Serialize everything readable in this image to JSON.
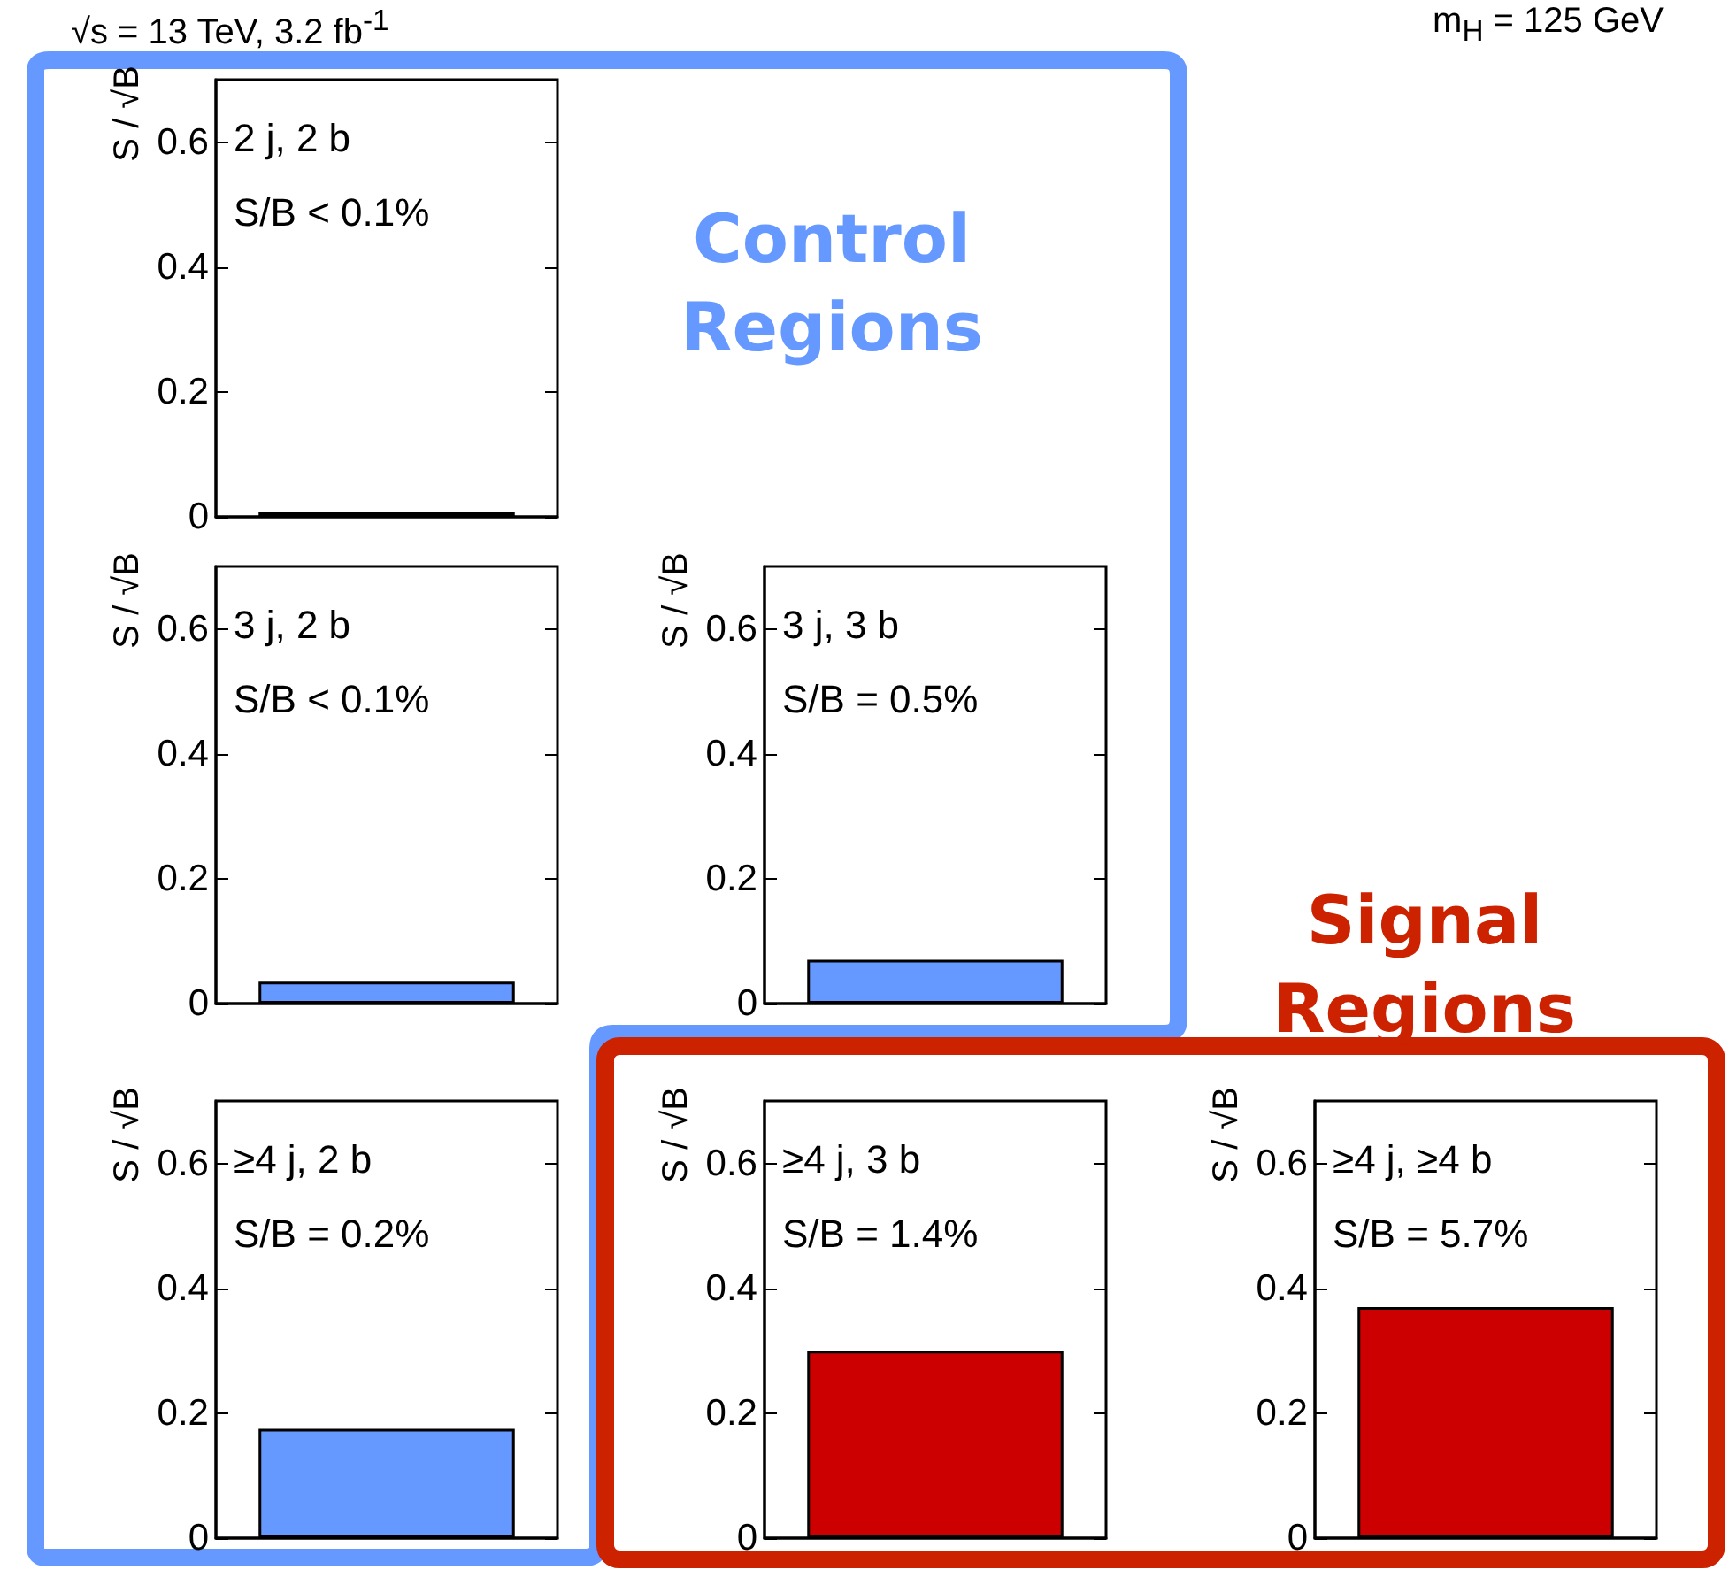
{
  "chart_data": [
    {
      "type": "bar",
      "categories": [
        null
      ],
      "values": [
        0.007
      ],
      "color": "#6699ff",
      "ylabel": "S / √B",
      "ylim": [
        0,
        0.7
      ],
      "yticks": [
        0,
        0.2,
        0.4,
        0.6
      ],
      "tick_labels": "y",
      "annotations": [
        "2 j, 2 b",
        "S/B < 0.1%"
      ]
    },
    {
      "type": "bar",
      "categories": [
        null
      ],
      "values": [
        0.035
      ],
      "color": "#6699ff",
      "ylabel": "S / √B",
      "ylim": [
        0,
        0.7
      ],
      "yticks": [
        0,
        0.2,
        0.4,
        0.6
      ],
      "tick_labels": "y",
      "annotations": [
        "3 j, 2 b",
        "S/B < 0.1%"
      ]
    },
    {
      "type": "bar",
      "categories": [
        null
      ],
      "values": [
        0.07
      ],
      "color": "#6699ff",
      "ylabel": "S / √B",
      "ylim": [
        0,
        0.7
      ],
      "yticks": [
        0,
        0.2,
        0.4,
        0.6
      ],
      "tick_labels": "y",
      "annotations": [
        "3 j, 3 b",
        "S/B = 0.5%"
      ]
    },
    {
      "type": "bar",
      "categories": [
        null
      ],
      "values": [
        0.175
      ],
      "color": "#6699ff",
      "ylabel": "S / √B",
      "ylim": [
        0,
        0.7
      ],
      "yticks": [
        0,
        0.2,
        0.4,
        0.6
      ],
      "tick_labels": "y",
      "annotations": [
        "≥4 j, 2 b",
        "S/B = 0.2%"
      ]
    },
    {
      "type": "bar",
      "categories": [
        null
      ],
      "values": [
        0.3
      ],
      "color": "#cc0000",
      "ylabel": "S / √B",
      "ylim": [
        0,
        0.7
      ],
      "yticks": [
        0,
        0.2,
        0.4,
        0.6
      ],
      "tick_labels": "y",
      "annotations": [
        "≥4 j, 3 b",
        "S/B = 1.4%"
      ]
    },
    {
      "type": "bar",
      "categories": [
        null
      ],
      "values": [
        0.37
      ],
      "color": "#cc0000",
      "ylabel": "S / √B",
      "ylim": [
        0,
        0.7
      ],
      "yticks": [
        0,
        0.2,
        0.4,
        0.6
      ],
      "tick_labels": "y",
      "annotations": [
        "≥4 j, ≥4 b",
        "S/B = 5.7%"
      ]
    },
    {
      "type": "other",
      "title": "Control Regions",
      "color": "#6699ff"
    },
    {
      "type": "other",
      "title": "Signal Regions",
      "color": "#cc2200"
    },
    {
      "type": "other",
      "annotations": [
        "√s = 13 TeV, 3.2 fb$^{-1}$",
        "m$_{H}$ = 125 GeV"
      ]
    }
  ]
}
